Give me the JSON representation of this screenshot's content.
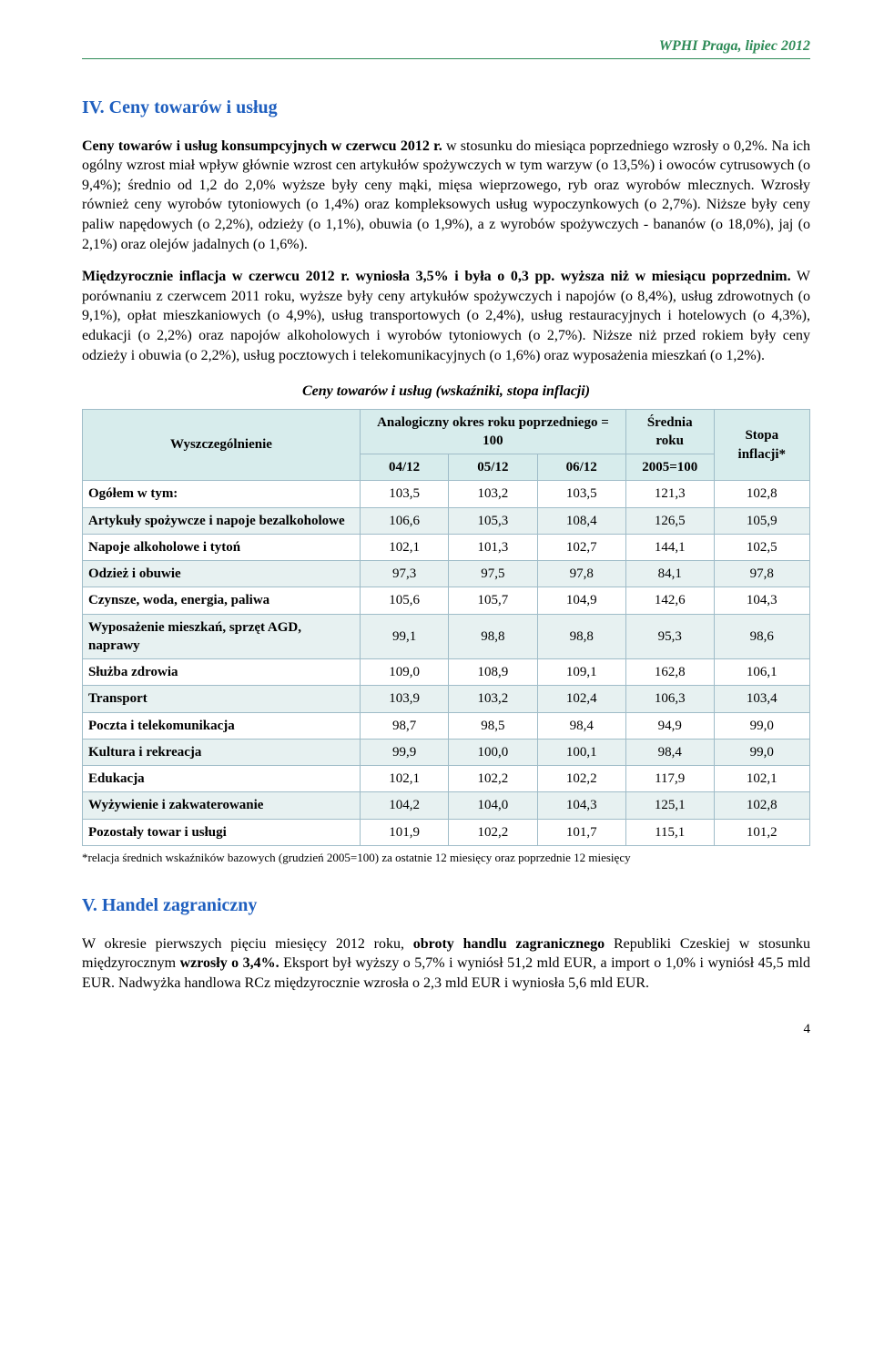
{
  "header": "WPHI Praga, lipiec 2012",
  "sectionIV": {
    "title": "IV. Ceny towarów i usług",
    "p1_prefix": "Ceny towarów i usług konsumpcyjnych w czerwcu  2012 r.",
    "p1_rest": " w stosunku do miesiąca poprzedniego wzrosły o 0,2%.",
    "p2": "Na ich ogólny wzrost miał wpływ głównie wzrost cen artykułów spożywczych w tym warzyw (o 13,5%) i owoców cytrusowych (o 9,4%); średnio od 1,2 do  2,0% wyższe były ceny mąki, mięsa wieprzowego, ryb oraz wyrobów mlecznych. Wzrosły również ceny wyrobów tytoniowych (o 1,4%) oraz kompleksowych usług wypoczynkowych (o 2,7%). Niższe były ceny paliw napędowych (o 2,2%), odzieży (o 1,1%), obuwia (o 1,9%), a z wyrobów spożywczych - bananów (o 18,0%), jaj (o 2,1%) oraz olejów jadalnych (o 1,6%).",
    "p3_bold": "Międzyrocznie inflacja w czerwcu 2012 r. wyniosła 3,5% i była o 0,3 pp. wyższa niż w miesiącu poprzednim.",
    "p3_rest": " W porównaniu z czerwcem 2011 roku, wyższe były ceny artykułów spożywczych  i napojów (o 8,4%), usług zdrowotnych (o 9,1%),  opłat mieszkaniowych (o 4,9%), usług transportowych (o 2,4%),  usług restauracyjnych i hotelowych (o 4,3%), edukacji  (o  2,2%) oraz napojów alkoholowych i wyrobów tytoniowych (o 2,7%). Niższe niż przed rokiem były ceny odzieży i obuwia (o 2,2%),  usług pocztowych i telekomunikacyjnych (o 1,6%) oraz wyposażenia mieszkań (o 1,2%).",
    "table_title": "Ceny towarów i usług (wskaźniki, stopa inflacji)",
    "footnote": "*relacja średnich wskaźników bazowych (grudzień 2005=100) za ostatnie 12 miesięcy oraz poprzednie 12 miesięcy"
  },
  "table": {
    "headers": {
      "col0": "Wyszczególnienie",
      "grp": "Analogiczny okres roku poprzedniego = 100",
      "c1": "04/12",
      "c2": "05/12",
      "c3": "06/12",
      "c4a": "Średnia roku",
      "c4b": "2005=100",
      "c5": "Stopa inflacji*"
    },
    "rows": [
      {
        "label": "Ogółem w tym:",
        "v": [
          "103,5",
          "103,2",
          "103,5",
          "121,3",
          "102,8"
        ],
        "shade": false
      },
      {
        "label": "Artykuły spożywcze i napoje bezalkoholowe",
        "v": [
          "106,6",
          "105,3",
          "108,4",
          "126,5",
          "105,9"
        ],
        "shade": true
      },
      {
        "label": "Napoje alkoholowe i tytoń",
        "v": [
          "102,1",
          "101,3",
          "102,7",
          "144,1",
          "102,5"
        ],
        "shade": false
      },
      {
        "label": "Odzież i obuwie",
        "v": [
          "97,3",
          "97,5",
          "97,8",
          "84,1",
          "97,8"
        ],
        "shade": true
      },
      {
        "label": "Czynsze, woda, energia, paliwa",
        "v": [
          "105,6",
          "105,7",
          "104,9",
          "142,6",
          "104,3"
        ],
        "shade": false
      },
      {
        "label": "Wyposażenie mieszkań, sprzęt AGD, naprawy",
        "v": [
          "99,1",
          "98,8",
          "98,8",
          "95,3",
          "98,6"
        ],
        "shade": true
      },
      {
        "label": "Służba zdrowia",
        "v": [
          "109,0",
          "108,9",
          "109,1",
          "162,8",
          "106,1"
        ],
        "shade": false
      },
      {
        "label": "Transport",
        "v": [
          "103,9",
          "103,2",
          "102,4",
          "106,3",
          "103,4"
        ],
        "shade": true
      },
      {
        "label": "Poczta i telekomunikacja",
        "v": [
          "98,7",
          "98,5",
          "98,4",
          "94,9",
          "99,0"
        ],
        "shade": false
      },
      {
        "label": "Kultura i rekreacja",
        "v": [
          "99,9",
          "100,0",
          "100,1",
          "98,4",
          "99,0"
        ],
        "shade": true
      },
      {
        "label": "Edukacja",
        "v": [
          "102,1",
          "102,2",
          "102,2",
          "117,9",
          "102,1"
        ],
        "shade": false
      },
      {
        "label": "Wyżywienie i zakwaterowanie",
        "v": [
          "104,2",
          "104,0",
          "104,3",
          "125,1",
          "102,8"
        ],
        "shade": true
      },
      {
        "label": "Pozostały towar i usługi",
        "v": [
          "101,9",
          "102,2",
          "101,7",
          "115,1",
          "101,2"
        ],
        "shade": false
      }
    ]
  },
  "sectionV": {
    "title": "V. Handel zagraniczny",
    "p1_a": "W okresie pierwszych pięciu  miesięcy 2012 roku, ",
    "p1_b1": "obroty handlu zagranicznego",
    "p1_c": " Republiki Czeskiej w stosunku międzyrocznym ",
    "p1_b2": "wzrosły o 3,4%.",
    "p1_d": " Eksport był wyższy o 5,7% i wyniósł 51,2 mld EUR, a import o 1,0% i wyniósł 45,5 mld EUR. Nadwyżka handlowa RCz międzyrocznie wzrosła  o 2,3 mld EUR i wyniosła 5,6 mld EUR."
  },
  "pagenum": "4",
  "colors": {
    "green": "#2e8b57",
    "blue": "#1f5fbf",
    "theadBg": "#d7ecec",
    "shadeBg": "#e7f1f1",
    "border": "#9fbcc8"
  }
}
